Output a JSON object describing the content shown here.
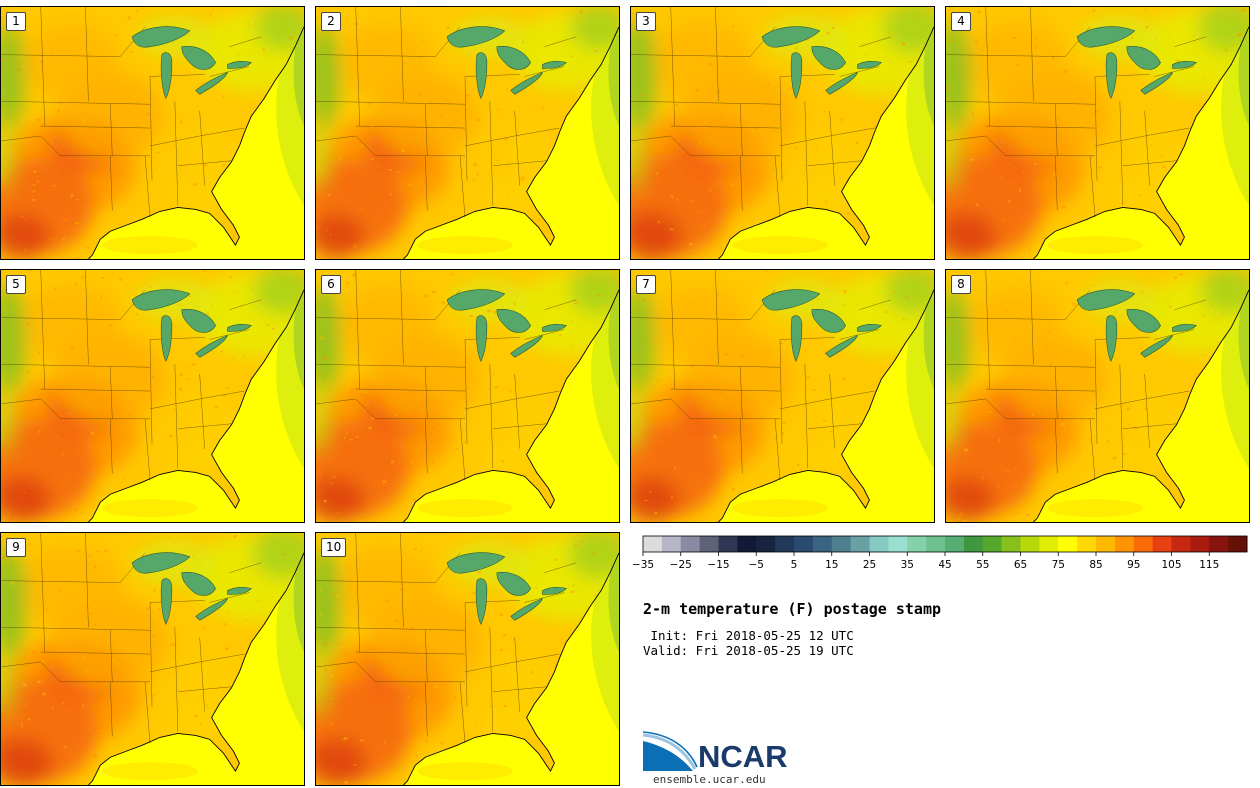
{
  "panels": [
    {
      "label": "1",
      "variant": 0
    },
    {
      "label": "2",
      "variant": 1
    },
    {
      "label": "3",
      "variant": 2
    },
    {
      "label": "4",
      "variant": 3
    },
    {
      "label": "5",
      "variant": 4
    },
    {
      "label": "6",
      "variant": 5
    },
    {
      "label": "7",
      "variant": 6
    },
    {
      "label": "8",
      "variant": 7
    },
    {
      "label": "9",
      "variant": 8
    },
    {
      "label": "10",
      "variant": 9
    }
  ],
  "title": "2-m temperature (F) postage stamp",
  "init_text": " Init: Fri 2018-05-25 12 UTC",
  "valid_text": "Valid: Fri 2018-05-25 19 UTC",
  "logo_text": "NCAR",
  "logo_url": "ensemble.ucar.edu",
  "colorbar": {
    "colors": [
      "#dcdcdc",
      "#b6b6c6",
      "#8a8aa4",
      "#5e6278",
      "#2f3552",
      "#101a36",
      "#162441",
      "#223a5a",
      "#2b4a6e",
      "#3a6380",
      "#4f7e8e",
      "#68a0a4",
      "#86c8c2",
      "#9ae0d0",
      "#84d0a8",
      "#6ec08e",
      "#56ae72",
      "#40983e",
      "#56a82a",
      "#86c01c",
      "#b8d808",
      "#e2ec00",
      "#ffff00",
      "#ffd800",
      "#ffb800",
      "#ff9400",
      "#f86c08",
      "#e84010",
      "#c82810",
      "#a81c10",
      "#881410",
      "#661008"
    ],
    "tick_labels": [
      "−35",
      "−25",
      "−15",
      "−5",
      "5",
      "15",
      "25",
      "35",
      "45",
      "55",
      "65",
      "75",
      "85",
      "95",
      "105",
      "115"
    ]
  },
  "map_colors": {
    "ocean": "#ffff00",
    "lakes": "#56a86a",
    "lake_outline": "#2a5a3c"
  }
}
